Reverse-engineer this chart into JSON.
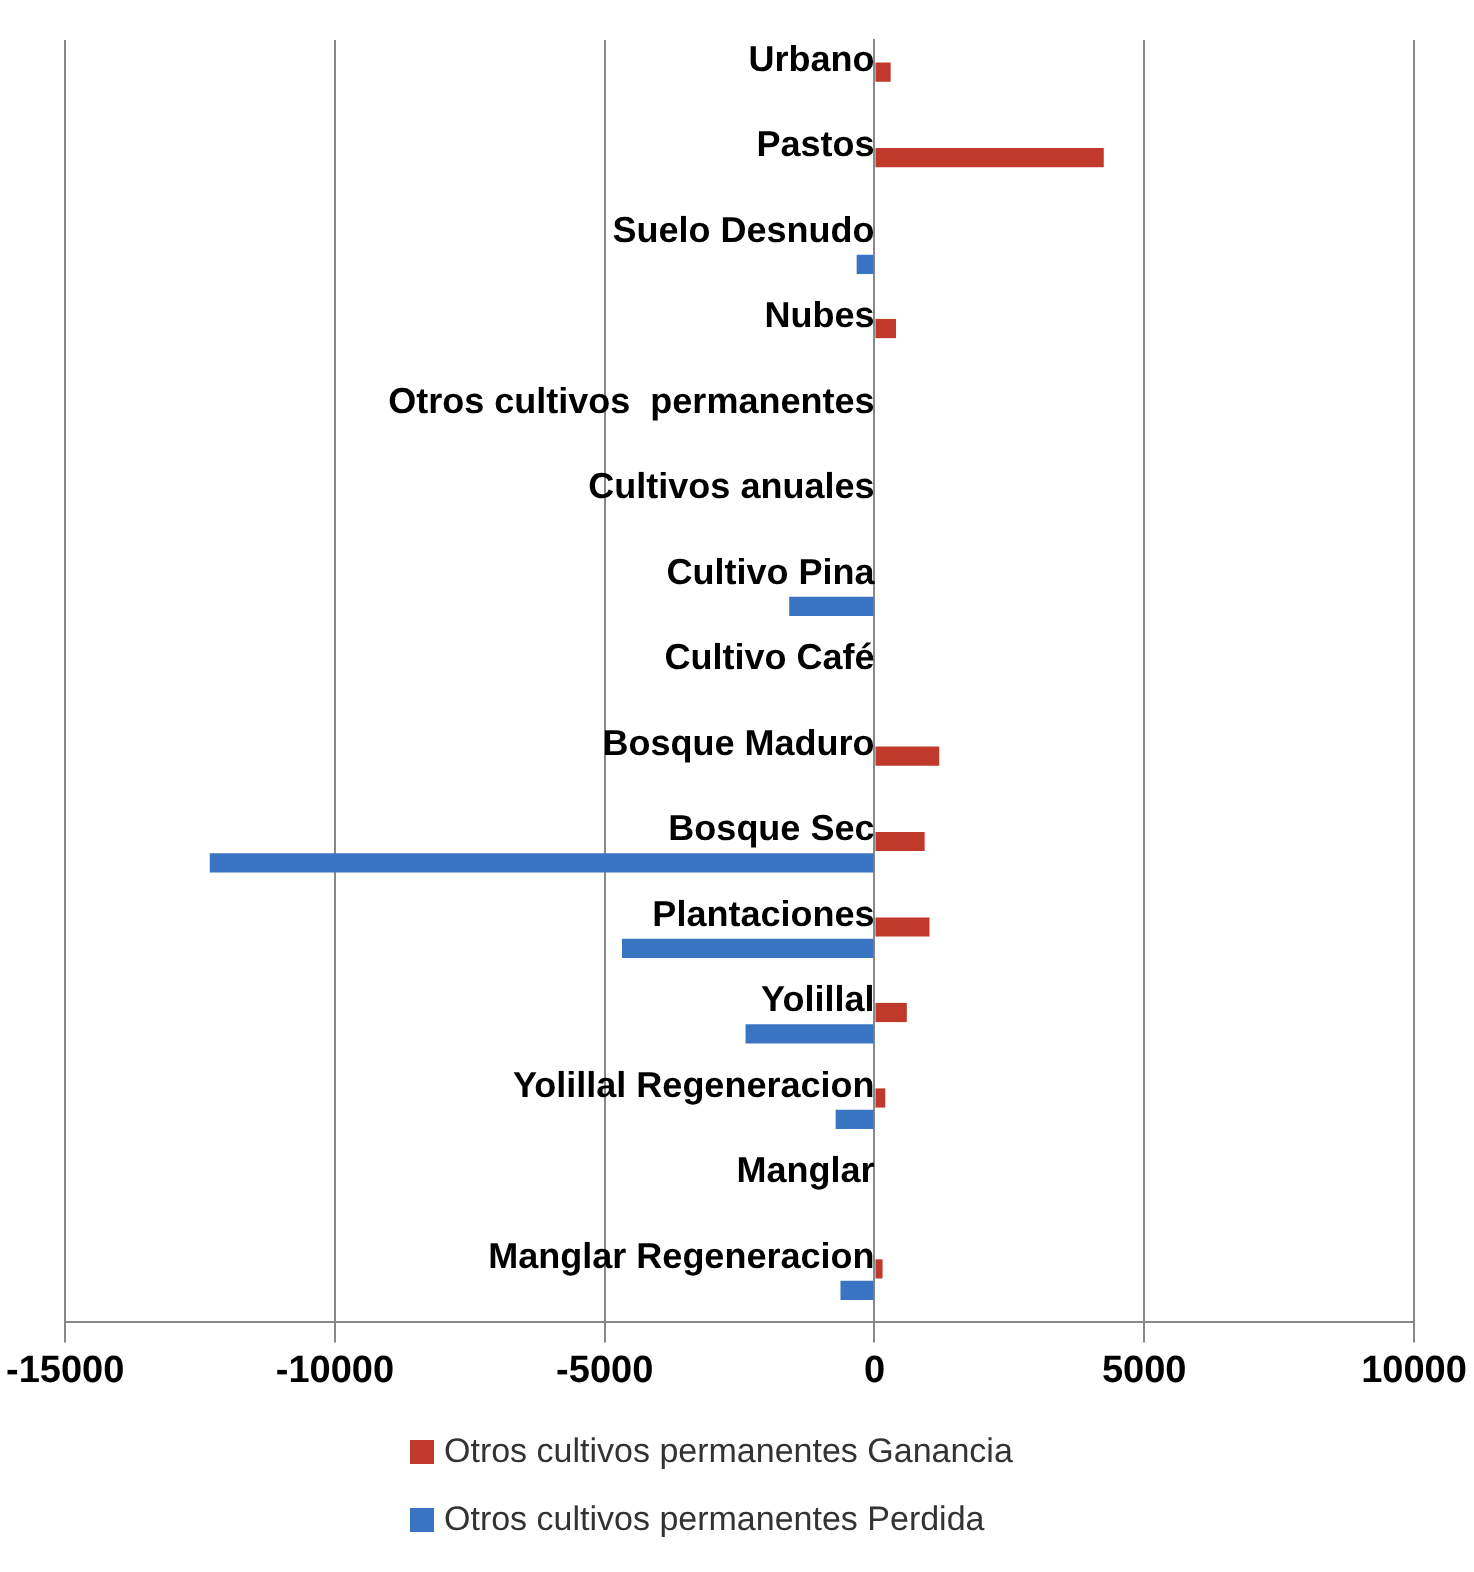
{
  "chart_data": {
    "type": "bar",
    "orientation": "horizontal",
    "categories": [
      "Urbano",
      "Pastos",
      "Suelo Desnudo",
      "Nubes",
      "Otros cultivos  permanentes",
      "Cultivos anuales",
      "Cultivo Pina",
      "Cultivo Café",
      "Bosque Maduro",
      "Bosque Sec",
      "Plantaciones",
      "Yolillal",
      "Yolillal Regeneracion",
      "Manglar",
      "Manglar Regeneracion"
    ],
    "series": [
      {
        "name": "Otros cultivos permanentes Ganancia",
        "color": "#c0392b",
        "values": [
          300,
          4250,
          null,
          400,
          null,
          null,
          null,
          null,
          1200,
          930,
          1020,
          600,
          200,
          null,
          150
        ]
      },
      {
        "name": "Otros cultivos permanentes Perdida",
        "color": "#3a75c4",
        "values": [
          null,
          null,
          -330,
          null,
          null,
          null,
          -1580,
          null,
          null,
          -12320,
          -4680,
          -2390,
          -720,
          null,
          -630
        ]
      }
    ],
    "xlim": [
      -15000,
      10000
    ],
    "xticks": [
      -15000,
      -10000,
      -5000,
      0,
      5000,
      10000
    ],
    "grid": "x",
    "legend": "bottom"
  }
}
